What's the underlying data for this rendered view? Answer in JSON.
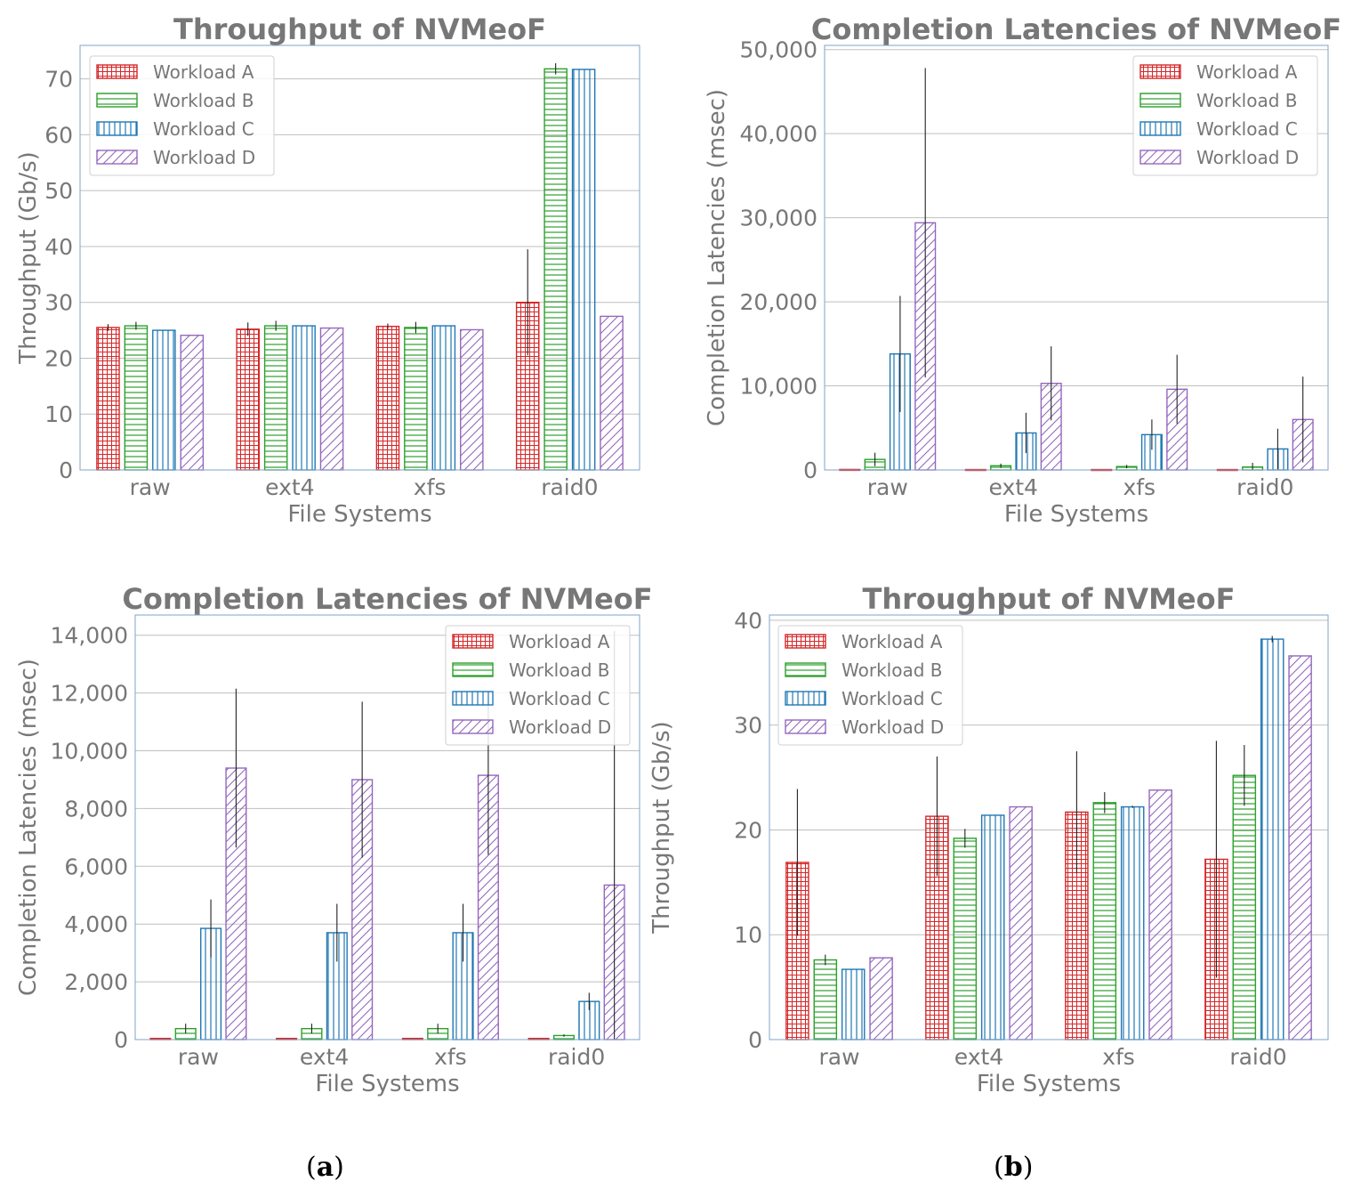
{
  "panel_labels": [
    {
      "open": "(",
      "letter": "a",
      "close": ")"
    },
    {
      "open": "(",
      "letter": "b",
      "close": ")"
    }
  ],
  "legend_labels": [
    "Workload A",
    "Workload B",
    "Workload C",
    "Workload D"
  ],
  "colors": {
    "A": "#d62728",
    "B": "#2ca02c",
    "C": "#1f77b4",
    "D": "#9467bd",
    "text": "#777777",
    "grid": "#bfbfbf",
    "frame": "#7fa3c9",
    "error": "#222222"
  },
  "chart_data": [
    {
      "type": "bar",
      "title": "Throughput of NVMeoF",
      "xlabel": "File Systems",
      "ylabel": "Throughput (Gb/s)",
      "categories": [
        "raw",
        "ext4",
        "xfs",
        "raid0"
      ],
      "ylim": [
        0,
        76
      ],
      "yticks": [
        0,
        10,
        20,
        30,
        40,
        50,
        60,
        70
      ],
      "ytick_labels": [
        "0",
        "10",
        "20",
        "30",
        "40",
        "50",
        "60",
        "70"
      ],
      "grid": true,
      "legend": "top-left",
      "series": [
        {
          "name": "Workload A",
          "values": [
            25.5,
            25.2,
            25.7,
            30.0
          ],
          "err": [
            0.6,
            1.2,
            0.5,
            9.5
          ]
        },
        {
          "name": "Workload B",
          "values": [
            25.8,
            25.8,
            25.5,
            71.8
          ],
          "err": [
            0.7,
            0.9,
            1.0,
            1.0
          ]
        },
        {
          "name": "Workload C",
          "values": [
            25.0,
            25.8,
            25.8,
            71.7
          ],
          "err": [
            0.0,
            0.0,
            0.0,
            0.0
          ]
        },
        {
          "name": "Workload D",
          "values": [
            24.1,
            25.4,
            25.1,
            27.5
          ],
          "err": [
            0.0,
            0.0,
            0.0,
            0.0
          ]
        }
      ]
    },
    {
      "type": "bar",
      "title": "Completion Latencies of NVMeoF",
      "xlabel": "File Systems",
      "ylabel": "Completion Latencies (msec)",
      "categories": [
        "raw",
        "ext4",
        "xfs",
        "raid0"
      ],
      "ylim": [
        0,
        50500
      ],
      "yticks": [
        0,
        10000,
        20000,
        30000,
        40000,
        50000
      ],
      "ytick_labels": [
        "0",
        "10,000",
        "20,000",
        "30,000",
        "40,000",
        "50,000"
      ],
      "grid": true,
      "legend": "top-right",
      "series": [
        {
          "name": "Workload A",
          "values": [
            60,
            50,
            50,
            50
          ],
          "err": [
            0,
            0,
            0,
            0
          ]
        },
        {
          "name": "Workload B",
          "values": [
            1250,
            500,
            400,
            350
          ],
          "err": [
            800,
            250,
            200,
            500
          ]
        },
        {
          "name": "Workload C",
          "values": [
            13800,
            4400,
            4200,
            2500
          ],
          "err": [
            6900,
            2400,
            1800,
            2400
          ]
        },
        {
          "name": "Workload D",
          "values": [
            29400,
            10300,
            9600,
            6000
          ],
          "err": [
            18400,
            4400,
            4100,
            5100
          ]
        }
      ]
    },
    {
      "type": "bar",
      "title": "Completion Latencies of NVMeoF",
      "xlabel": "File Systems",
      "ylabel": "Completion Latencies (msec)",
      "categories": [
        "raw",
        "ext4",
        "xfs",
        "raid0"
      ],
      "ylim": [
        0,
        14700
      ],
      "yticks": [
        0,
        2000,
        4000,
        6000,
        8000,
        10000,
        12000,
        14000
      ],
      "ytick_labels": [
        "0",
        "2,000",
        "4,000",
        "6,000",
        "8,000",
        "10,000",
        "12,000",
        "14,000"
      ],
      "grid": true,
      "legend": "top-right",
      "series": [
        {
          "name": "Workload A",
          "values": [
            40,
            40,
            40,
            40
          ],
          "err": [
            0,
            0,
            0,
            0
          ]
        },
        {
          "name": "Workload B",
          "values": [
            380,
            380,
            380,
            140
          ],
          "err": [
            170,
            170,
            170,
            40
          ]
        },
        {
          "name": "Workload C",
          "values": [
            3850,
            3700,
            3700,
            1320
          ],
          "err": [
            1000,
            1000,
            1000,
            300
          ]
        },
        {
          "name": "Workload D",
          "values": [
            9400,
            9000,
            9150,
            5350
          ],
          "err": [
            2750,
            2700,
            2750,
            8800
          ]
        }
      ]
    },
    {
      "type": "bar",
      "title": "Throughput of NVMeoF",
      "xlabel": "File Systems",
      "ylabel": "Throughput (Gb/s)",
      "categories": [
        "raw",
        "ext4",
        "xfs",
        "raid0"
      ],
      "ylim": [
        0,
        40.5
      ],
      "yticks": [
        0,
        10,
        20,
        30,
        40
      ],
      "ytick_labels": [
        "0",
        "10",
        "20",
        "30",
        "40"
      ],
      "grid": true,
      "legend": "top-left",
      "series": [
        {
          "name": "Workload A",
          "values": [
            16.9,
            21.3,
            21.7,
            17.2
          ],
          "err": [
            7.0,
            5.7,
            5.8,
            11.3
          ]
        },
        {
          "name": "Workload B",
          "values": [
            7.6,
            19.2,
            22.6,
            25.2
          ],
          "err": [
            0.5,
            0.9,
            1.0,
            2.9
          ]
        },
        {
          "name": "Workload C",
          "values": [
            6.7,
            21.4,
            22.2,
            38.2
          ],
          "err": [
            0.0,
            0.0,
            0.1,
            0.3
          ]
        },
        {
          "name": "Workload D",
          "values": [
            7.8,
            22.2,
            23.8,
            36.6
          ],
          "err": [
            0.0,
            0.0,
            0.0,
            0.0
          ]
        }
      ]
    }
  ]
}
